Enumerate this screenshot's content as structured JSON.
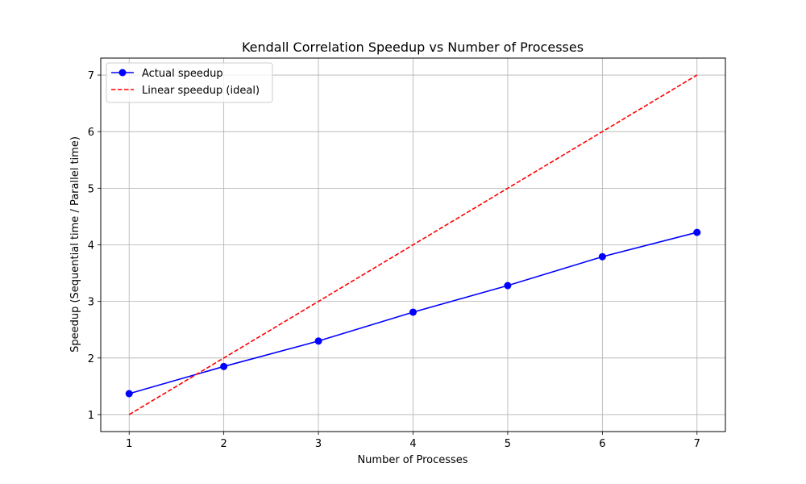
{
  "chart_data": {
    "type": "line",
    "title": "Kendall Correlation Speedup vs Number of Processes",
    "xlabel": "Number of Processes",
    "ylabel": "Speedup (Sequential time / Parallel time)",
    "x": [
      1,
      2,
      3,
      4,
      5,
      6,
      7
    ],
    "xlim": [
      0.7,
      7.3
    ],
    "ylim": [
      0.7,
      7.3
    ],
    "xticks": [
      1,
      2,
      3,
      4,
      5,
      6,
      7
    ],
    "yticks": [
      1,
      2,
      3,
      4,
      5,
      6,
      7
    ],
    "grid": true,
    "legend_position": "top-left",
    "series": [
      {
        "name": "Actual speedup",
        "values": [
          1.37,
          1.85,
          2.3,
          2.81,
          3.28,
          3.79,
          4.22
        ],
        "color": "#0000ff",
        "line_style": "solid",
        "marker": "circle"
      },
      {
        "name": "Linear speedup (ideal)",
        "values": [
          1,
          2,
          3,
          4,
          5,
          6,
          7
        ],
        "color": "#ff0000",
        "line_style": "dashed",
        "marker": "none"
      }
    ]
  }
}
